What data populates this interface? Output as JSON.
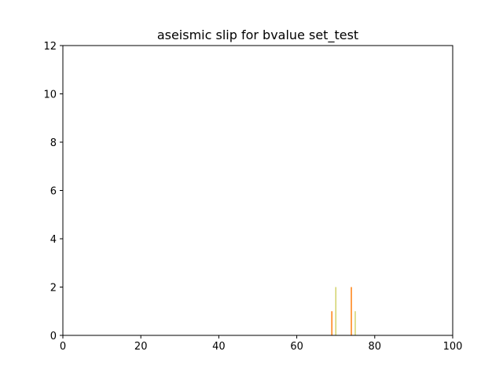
{
  "chart_data": {
    "type": "bar",
    "title": "aseismic slip for bvalue set_test",
    "xlabel": "",
    "ylabel": "",
    "xlim": [
      0,
      100
    ],
    "ylim": [
      0,
      12
    ],
    "xticks": [
      "0",
      "20",
      "40",
      "60",
      "80",
      "100"
    ],
    "yticks": [
      "0",
      "2",
      "4",
      "6",
      "8",
      "10",
      "12"
    ],
    "grid": false,
    "legend": "none",
    "series": [
      {
        "color": "#ff7f0e",
        "bar_width": 0.3,
        "points": [
          {
            "x": 69,
            "y": 1
          },
          {
            "x": 74,
            "y": 2
          }
        ]
      },
      {
        "color": "#bcbd22",
        "bar_width": 0.2,
        "points": [
          {
            "x": 70,
            "y": 2
          },
          {
            "x": 75,
            "y": 1
          }
        ]
      }
    ]
  }
}
